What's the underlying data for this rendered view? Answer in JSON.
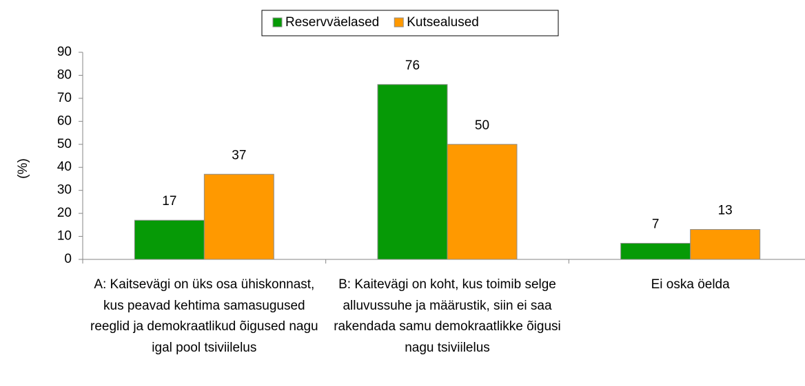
{
  "chart_data": {
    "type": "bar",
    "y_label": "(%)",
    "categories": [
      "A: Kaitsevägi on üks osa ühiskonnast, kus peavad kehtima samasugused reeglid ja demokraatlikud õigused nagu igal pool tsiviilelus",
      "B: Kaitevägi on koht, kus toimib selge alluvussuhe ja määrustik, siin ei saa rakendada samu demokraatlikke õigusi nagu tsiviilelus",
      "Ei oska öelda"
    ],
    "series": [
      {
        "name": "Reservväelased",
        "color": "#069a06",
        "values": [
          17,
          76,
          7
        ]
      },
      {
        "name": "Kutsealused",
        "color": "#ff9900",
        "values": [
          37,
          50,
          13
        ]
      }
    ],
    "ylim": [
      0,
      90
    ],
    "yticks": [
      0,
      10,
      20,
      30,
      40,
      50,
      60,
      70,
      80,
      90
    ],
    "legend": "top"
  }
}
